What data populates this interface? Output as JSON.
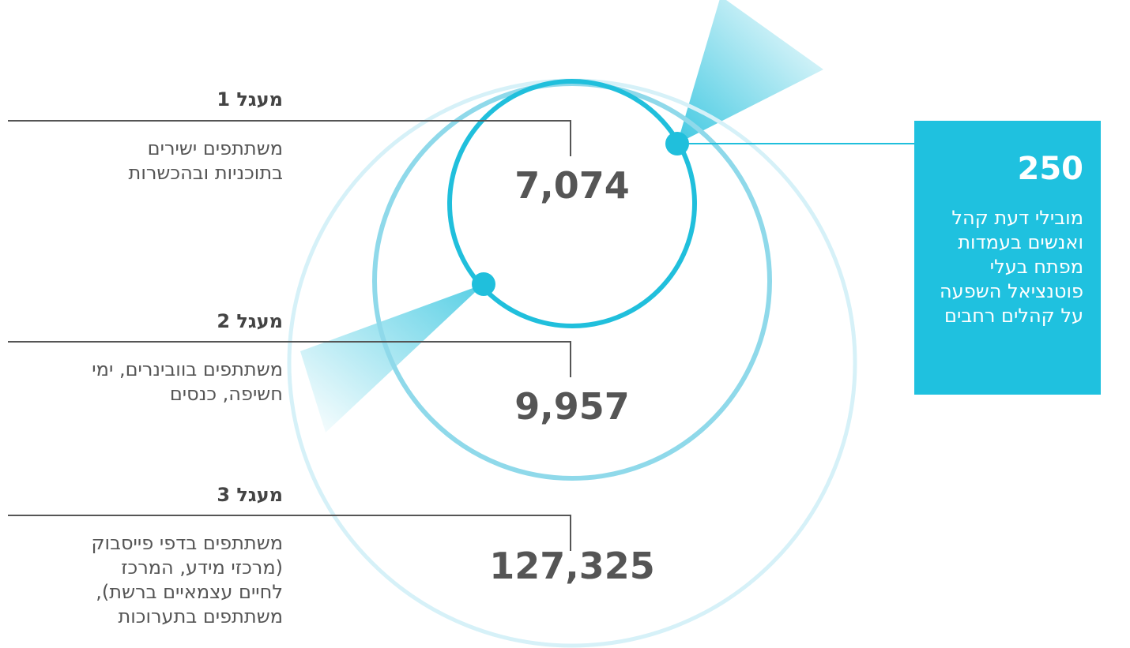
{
  "circles": [
    {
      "title": "מעגל 1",
      "description": "משתתפים ישירים\nבתוכניות ובהכשרות",
      "value": "7,074"
    },
    {
      "title": "מעגל 2",
      "description": "משתתפים בוובינרים, ימי\nחשיפה, כנסים",
      "value": "9,957"
    },
    {
      "title": "מעגל 3",
      "description": "משתתפים בדפי פייסבוק\n(מרכזי מידע, המרכז\nלחיים עצמאיים ברשת),\nמשתתפים בתערוכות",
      "value": "127,325"
    }
  ],
  "callout": {
    "value": "250",
    "text": "מובילי דעת קהל\nואנשים בעמדות\nמפתח בעלי\nפוטנציאל השפעה\nעל קהלים רחבים"
  },
  "colors": {
    "inner_ring": "#20bfdc",
    "middle_ring": "#8fd9ea",
    "outer_ring": "#d6f1f8",
    "callout_bg": "#1fc1df",
    "leader_line": "#555555",
    "value_text": "#555555"
  }
}
